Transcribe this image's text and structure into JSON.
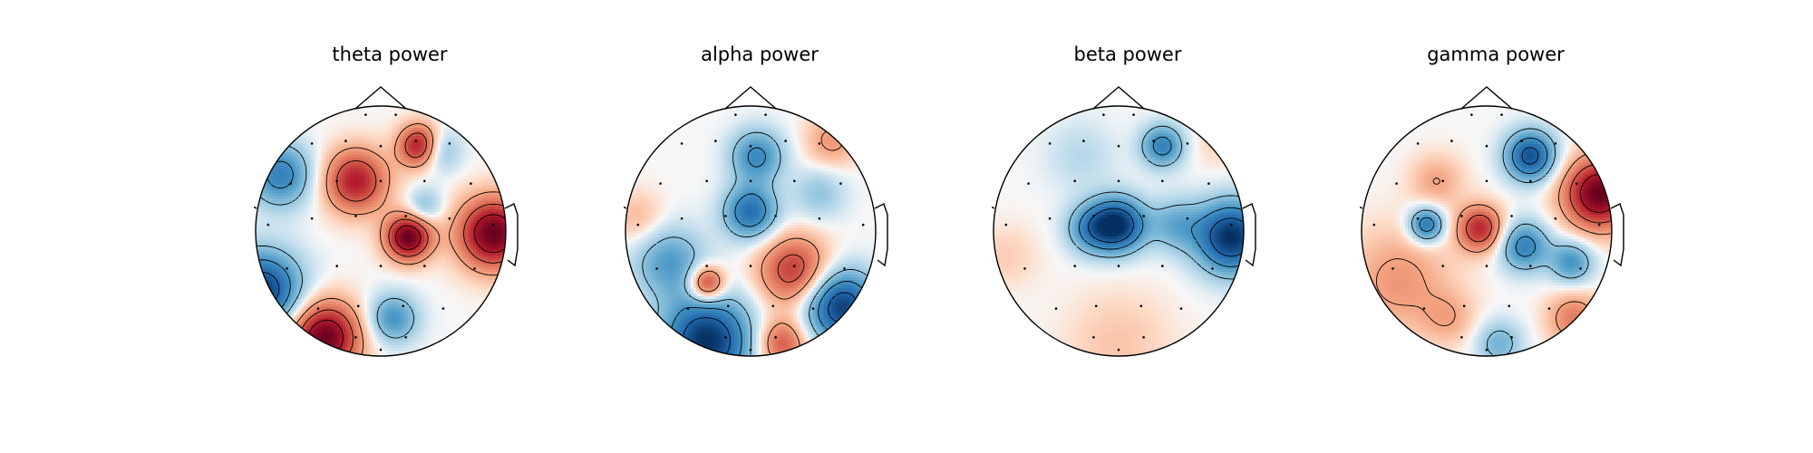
{
  "chart_data": [
    {
      "type": "heatmap",
      "title": "theta power",
      "colormap": "RdBu_r",
      "sensors": [
        [
          -0.12,
          0.93
        ],
        [
          0.12,
          0.93
        ],
        [
          -0.55,
          0.7
        ],
        [
          -0.28,
          0.72
        ],
        [
          0,
          0.68
        ],
        [
          0.28,
          0.72
        ],
        [
          0.55,
          0.7
        ],
        [
          -0.72,
          0.38
        ],
        [
          -0.35,
          0.4
        ],
        [
          0,
          0.4
        ],
        [
          0.35,
          0.4
        ],
        [
          0.72,
          0.38
        ],
        [
          -0.9,
          0.05
        ],
        [
          -0.55,
          0.1
        ],
        [
          -0.2,
          0.12
        ],
        [
          0.2,
          0.12
        ],
        [
          0.55,
          0.1
        ],
        [
          0.9,
          0.05
        ],
        [
          -0.75,
          -0.3
        ],
        [
          -0.35,
          -0.28
        ],
        [
          0,
          -0.28
        ],
        [
          0.35,
          -0.28
        ],
        [
          0.75,
          -0.3
        ],
        [
          -0.5,
          -0.62
        ],
        [
          -0.18,
          -0.6
        ],
        [
          0.18,
          -0.6
        ],
        [
          0.5,
          -0.62
        ],
        [
          -0.2,
          -0.85
        ],
        [
          0.2,
          -0.85
        ],
        [
          0,
          -0.95
        ]
      ],
      "sources": [
        {
          "x": -0.2,
          "y": 0.4,
          "v": 0.75,
          "s": 0.18
        },
        {
          "x": 0.32,
          "y": 0.68,
          "v": 0.9,
          "s": 0.12
        },
        {
          "x": 0.22,
          "y": -0.05,
          "v": 1.0,
          "s": 0.13
        },
        {
          "x": 0.9,
          "y": -0.02,
          "v": 1.0,
          "s": 0.2
        },
        {
          "x": -0.45,
          "y": -0.85,
          "v": 1.0,
          "s": 0.2
        },
        {
          "x": -0.95,
          "y": -0.48,
          "v": -0.95,
          "s": 0.22
        },
        {
          "x": -0.8,
          "y": 0.45,
          "v": -0.6,
          "s": 0.18
        },
        {
          "x": 0.45,
          "y": 0.65,
          "v": -0.45,
          "s": 0.12
        },
        {
          "x": 0.35,
          "y": 0.2,
          "v": -0.3,
          "s": 0.1
        },
        {
          "x": 0.1,
          "y": -0.7,
          "v": -0.5,
          "s": 0.14
        }
      ]
    },
    {
      "type": "heatmap",
      "title": "alpha power",
      "colormap": "RdBu_r",
      "sensors": [
        [
          -0.12,
          0.93
        ],
        [
          0.12,
          0.93
        ],
        [
          -0.55,
          0.7
        ],
        [
          -0.28,
          0.72
        ],
        [
          0,
          0.68
        ],
        [
          0.28,
          0.72
        ],
        [
          0.55,
          0.7
        ],
        [
          -0.72,
          0.38
        ],
        [
          -0.35,
          0.4
        ],
        [
          0,
          0.4
        ],
        [
          0.35,
          0.4
        ],
        [
          0.72,
          0.38
        ],
        [
          -0.9,
          0.05
        ],
        [
          -0.55,
          0.1
        ],
        [
          -0.2,
          0.12
        ],
        [
          0.2,
          0.12
        ],
        [
          0.55,
          0.1
        ],
        [
          0.9,
          0.05
        ],
        [
          -0.75,
          -0.3
        ],
        [
          -0.35,
          -0.28
        ],
        [
          0,
          -0.28
        ],
        [
          0.35,
          -0.28
        ],
        [
          0.75,
          -0.3
        ],
        [
          -0.5,
          -0.62
        ],
        [
          -0.18,
          -0.6
        ],
        [
          0.18,
          -0.6
        ],
        [
          0.5,
          -0.62
        ],
        [
          -0.2,
          -0.85
        ],
        [
          0.2,
          -0.85
        ],
        [
          0,
          -0.95
        ]
      ],
      "sources": [
        {
          "x": -0.35,
          "y": -0.88,
          "v": -1.0,
          "s": 0.25
        },
        {
          "x": 0.72,
          "y": -0.6,
          "v": -0.95,
          "s": 0.2
        },
        {
          "x": 0,
          "y": 0.15,
          "v": -0.7,
          "s": 0.15
        },
        {
          "x": 0.05,
          "y": 0.6,
          "v": -0.55,
          "s": 0.15
        },
        {
          "x": -0.65,
          "y": -0.25,
          "v": -0.45,
          "s": 0.2
        },
        {
          "x": 0.55,
          "y": 0.3,
          "v": -0.25,
          "s": 0.15
        },
        {
          "x": 0.35,
          "y": -0.32,
          "v": 0.65,
          "s": 0.2
        },
        {
          "x": -0.35,
          "y": -0.42,
          "v": 0.75,
          "s": 0.1
        },
        {
          "x": 0.25,
          "y": -0.9,
          "v": 0.55,
          "s": 0.14
        },
        {
          "x": 0.65,
          "y": 0.72,
          "v": 0.3,
          "s": 0.15
        },
        {
          "x": -0.9,
          "y": 0.1,
          "v": 0.2,
          "s": 0.15
        }
      ]
    },
    {
      "type": "heatmap",
      "title": "beta power",
      "colormap": "RdBu_r",
      "sensors": [
        [
          -0.12,
          0.93
        ],
        [
          0.12,
          0.93
        ],
        [
          -0.55,
          0.7
        ],
        [
          -0.28,
          0.72
        ],
        [
          0,
          0.68
        ],
        [
          0.28,
          0.72
        ],
        [
          0.55,
          0.7
        ],
        [
          -0.72,
          0.38
        ],
        [
          -0.35,
          0.4
        ],
        [
          0,
          0.4
        ],
        [
          0.35,
          0.4
        ],
        [
          0.72,
          0.38
        ],
        [
          -0.9,
          0.05
        ],
        [
          -0.55,
          0.1
        ],
        [
          -0.2,
          0.12
        ],
        [
          0.2,
          0.12
        ],
        [
          0.55,
          0.1
        ],
        [
          0.9,
          0.05
        ],
        [
          -0.75,
          -0.3
        ],
        [
          -0.35,
          -0.28
        ],
        [
          0,
          -0.28
        ],
        [
          0.35,
          -0.28
        ],
        [
          0.75,
          -0.3
        ],
        [
          -0.5,
          -0.62
        ],
        [
          -0.18,
          -0.6
        ],
        [
          0.18,
          -0.6
        ],
        [
          0.5,
          -0.62
        ],
        [
          -0.2,
          -0.85
        ],
        [
          0.2,
          -0.85
        ],
        [
          0,
          -0.95
        ]
      ],
      "sources": [
        {
          "x": 0,
          "y": 0.05,
          "v": -0.95,
          "s": 0.15
        },
        {
          "x": -0.22,
          "y": 0.02,
          "v": -0.5,
          "s": 0.14
        },
        {
          "x": 0.9,
          "y": -0.05,
          "v": -1.0,
          "s": 0.2
        },
        {
          "x": 0.35,
          "y": 0.68,
          "v": -0.6,
          "s": 0.12
        },
        {
          "x": 0.45,
          "y": 0.05,
          "v": -0.35,
          "s": 0.15
        },
        {
          "x": -0.3,
          "y": 0.6,
          "v": -0.15,
          "s": 0.2
        },
        {
          "x": 0,
          "y": -0.9,
          "v": 0.15,
          "s": 0.3
        },
        {
          "x": -0.9,
          "y": -0.2,
          "v": 0.12,
          "s": 0.18
        },
        {
          "x": 0.8,
          "y": 0.7,
          "v": 0.1,
          "s": 0.15
        }
      ]
    },
    {
      "type": "heatmap",
      "title": "gamma power",
      "colormap": "RdBu_r",
      "sensors": [
        [
          -0.12,
          0.93
        ],
        [
          0.12,
          0.93
        ],
        [
          -0.55,
          0.7
        ],
        [
          -0.28,
          0.72
        ],
        [
          0,
          0.68
        ],
        [
          0.28,
          0.72
        ],
        [
          0.55,
          0.7
        ],
        [
          -0.72,
          0.38
        ],
        [
          -0.35,
          0.4
        ],
        [
          0,
          0.4
        ],
        [
          0.35,
          0.4
        ],
        [
          0.72,
          0.38
        ],
        [
          -0.9,
          0.05
        ],
        [
          -0.55,
          0.1
        ],
        [
          -0.2,
          0.12
        ],
        [
          0.2,
          0.12
        ],
        [
          0.55,
          0.1
        ],
        [
          0.9,
          0.05
        ],
        [
          -0.75,
          -0.3
        ],
        [
          -0.35,
          -0.28
        ],
        [
          0,
          -0.28
        ],
        [
          0.35,
          -0.28
        ],
        [
          0.75,
          -0.3
        ],
        [
          -0.5,
          -0.62
        ],
        [
          -0.18,
          -0.6
        ],
        [
          0.18,
          -0.6
        ],
        [
          0.5,
          -0.62
        ],
        [
          -0.2,
          -0.85
        ],
        [
          0.2,
          -0.85
        ],
        [
          0,
          -0.95
        ]
      ],
      "sources": [
        {
          "x": 0.9,
          "y": 0.3,
          "v": 1.0,
          "s": 0.2
        },
        {
          "x": -0.05,
          "y": 0.02,
          "v": 0.7,
          "s": 0.13
        },
        {
          "x": -0.4,
          "y": 0.4,
          "v": 0.25,
          "s": 0.15
        },
        {
          "x": -0.7,
          "y": -0.4,
          "v": 0.3,
          "s": 0.3
        },
        {
          "x": 0.7,
          "y": -0.7,
          "v": 0.4,
          "s": 0.15
        },
        {
          "x": -0.3,
          "y": -0.7,
          "v": 0.2,
          "s": 0.15
        },
        {
          "x": 0.35,
          "y": 0.6,
          "v": -0.85,
          "s": 0.14
        },
        {
          "x": -0.48,
          "y": 0.05,
          "v": -0.7,
          "s": 0.1
        },
        {
          "x": 0.3,
          "y": -0.12,
          "v": -0.6,
          "s": 0.14
        },
        {
          "x": 0.68,
          "y": -0.25,
          "v": -0.5,
          "s": 0.12
        },
        {
          "x": 0.1,
          "y": -0.9,
          "v": -0.35,
          "s": 0.13
        }
      ]
    }
  ]
}
